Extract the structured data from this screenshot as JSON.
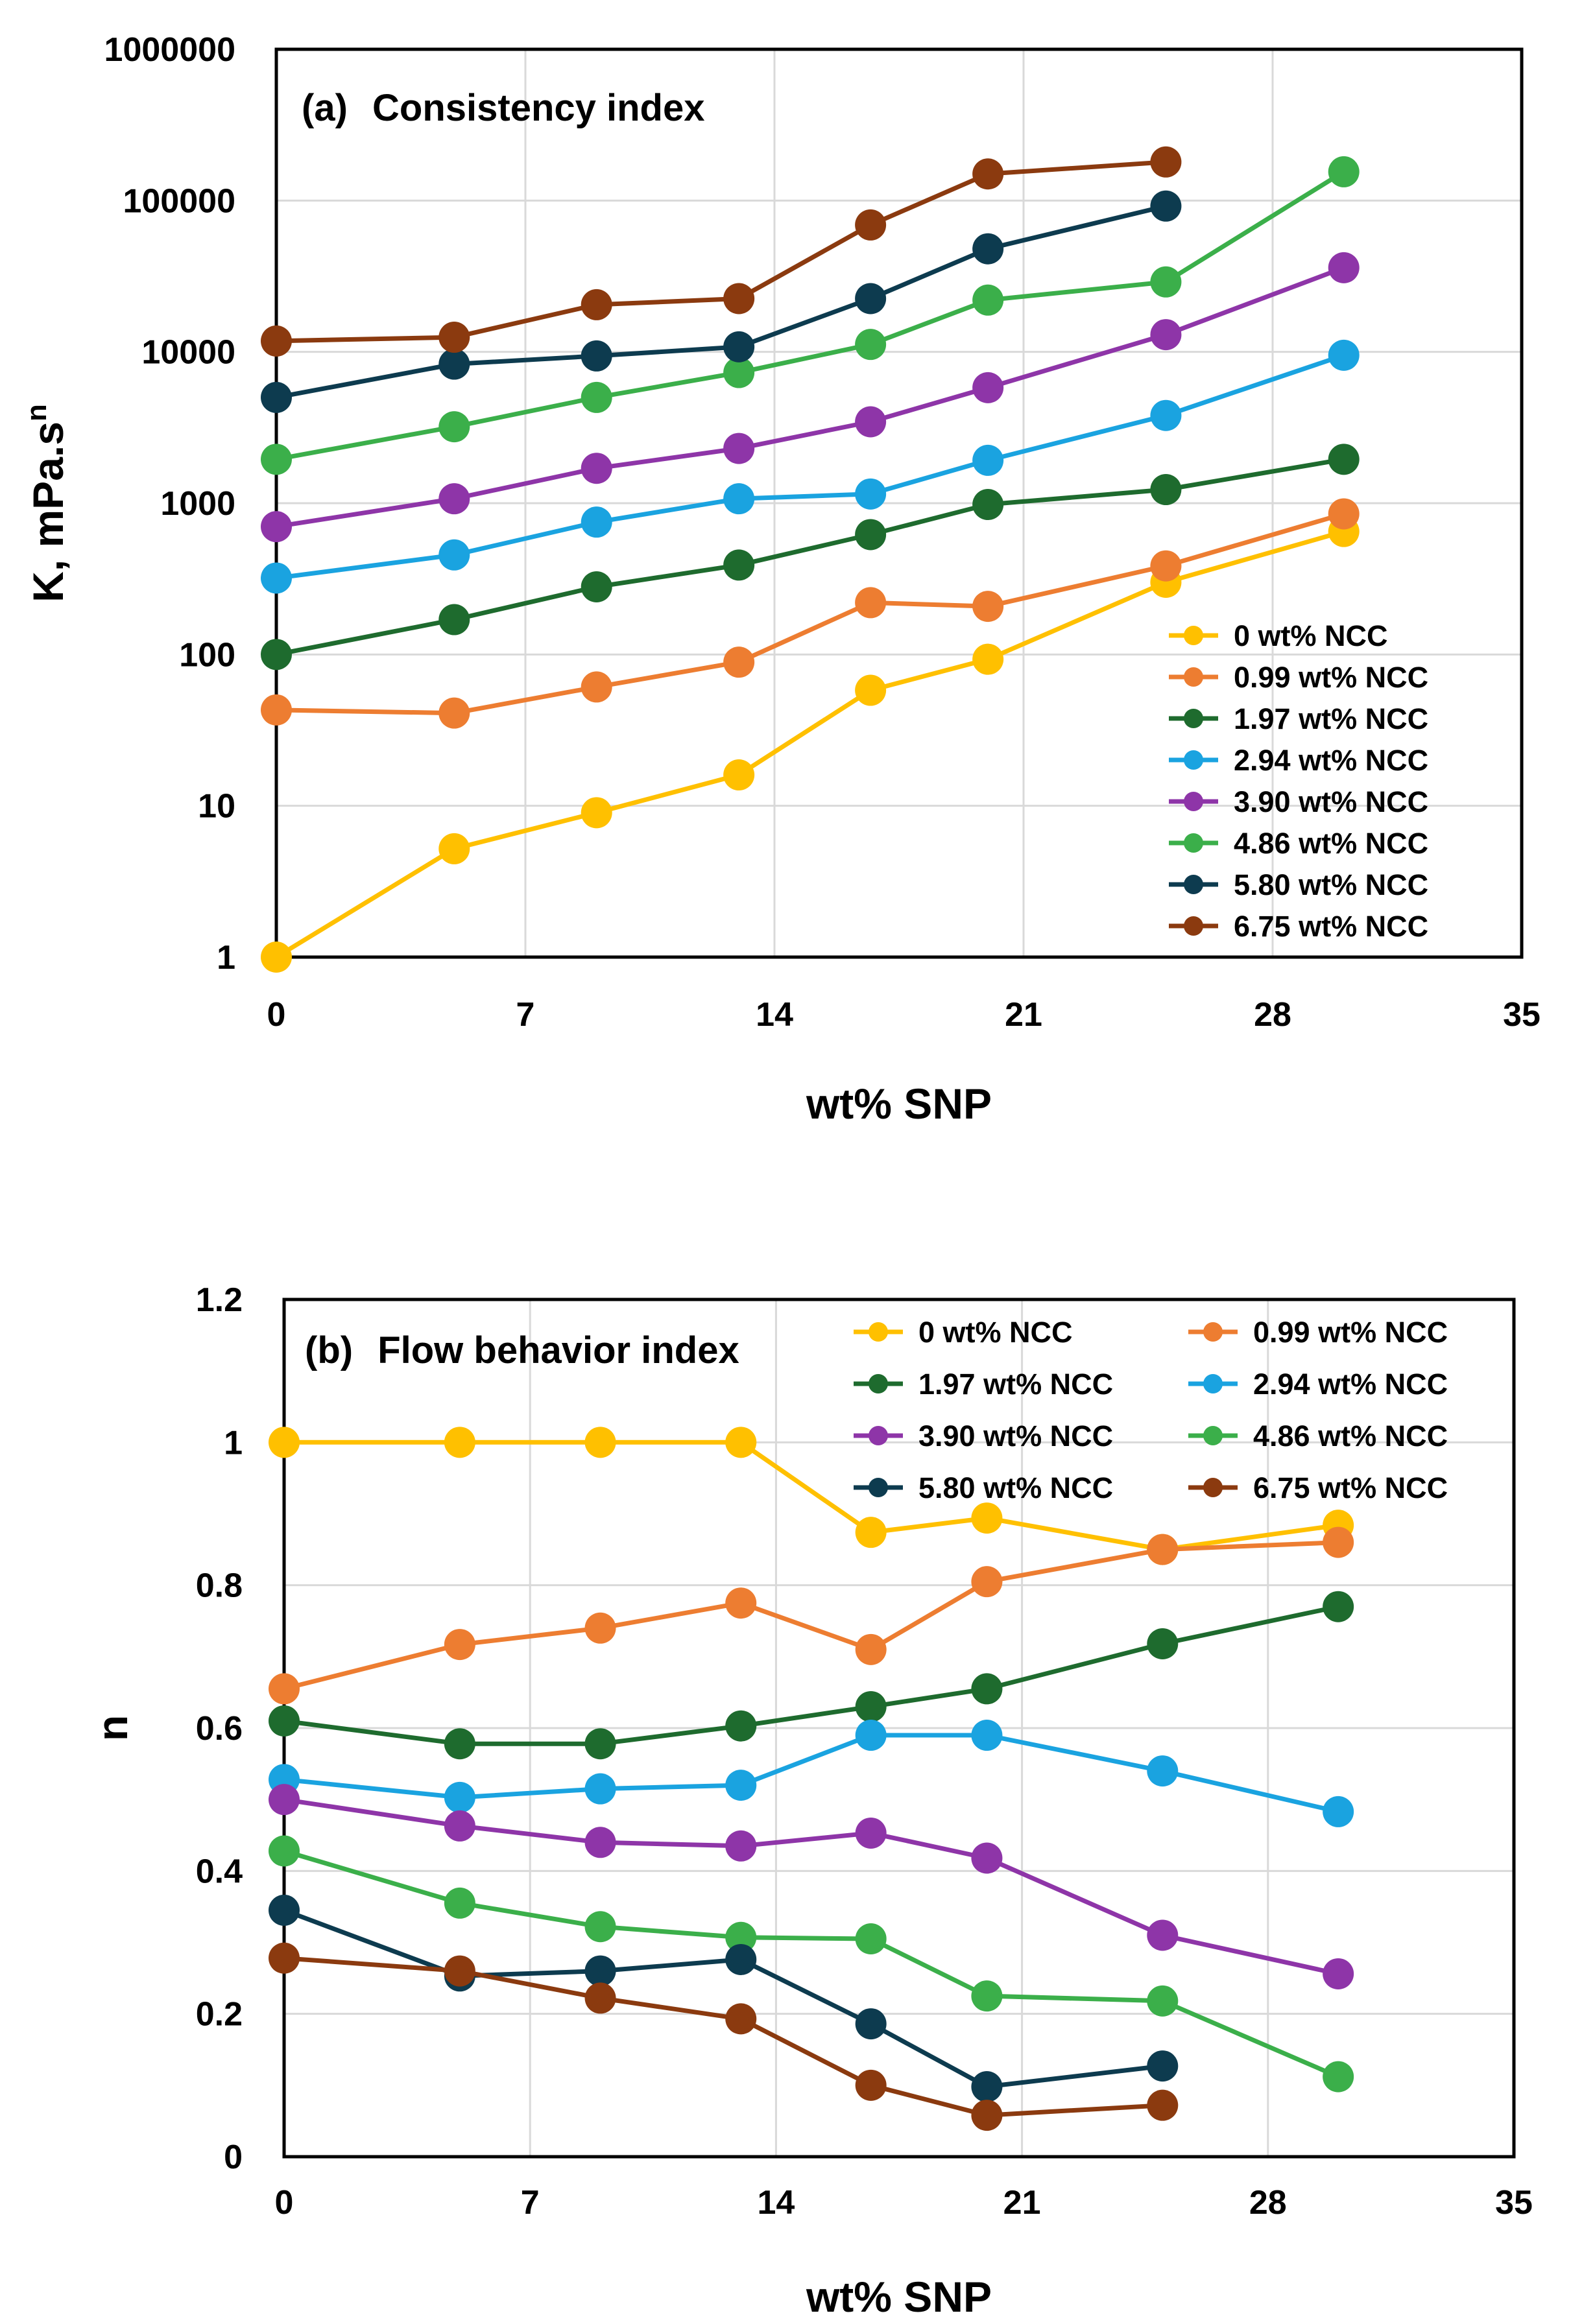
{
  "chart_data": [
    {
      "type": "line",
      "panel": "a",
      "title_tag": "(a)",
      "title": "Consistency index",
      "xlabel": "wt% SNP",
      "ylabel": "K, mPa.s",
      "ylabel_sup": "n",
      "yscale": "log",
      "xlim": [
        0,
        35
      ],
      "ylim": [
        1,
        1000000
      ],
      "xticks": [
        0,
        7,
        14,
        21,
        28,
        35
      ],
      "yticks": [
        1,
        10,
        100,
        1000,
        10000,
        100000,
        1000000
      ],
      "xtick_labels": [
        "0",
        "7",
        "14",
        "21",
        "28",
        "35"
      ],
      "ytick_labels": [
        "1",
        "10",
        "100",
        "1000",
        "10000",
        "100000",
        "1000000"
      ],
      "grid": true,
      "legend_position": "lower-right",
      "series": [
        {
          "name": "0 wt% NCC",
          "color": "#FFC000",
          "x": [
            0,
            5,
            9,
            13,
            16.7,
            20,
            25,
            30
          ],
          "y": [
            1,
            5.2,
            9,
            16,
            58,
            93,
            300,
            650
          ]
        },
        {
          "name": "0.99 wt% NCC",
          "color": "#ED7D31",
          "x": [
            0,
            5,
            9,
            13,
            16.7,
            20,
            25,
            30
          ],
          "y": [
            43,
            41,
            61,
            89,
            220,
            208,
            385,
            850
          ]
        },
        {
          "name": "1.97 wt% NCC",
          "color": "#1E6B2E",
          "x": [
            0,
            5,
            9,
            13,
            16.7,
            20,
            25,
            30
          ],
          "y": [
            100,
            170,
            280,
            390,
            620,
            980,
            1230,
            1950
          ]
        },
        {
          "name": "2.94 wt% NCC",
          "color": "#1AA3E0",
          "x": [
            0,
            5,
            9,
            13,
            16.7,
            20,
            25,
            30
          ],
          "y": [
            320,
            455,
            750,
            1070,
            1150,
            1920,
            3800,
            9500
          ]
        },
        {
          "name": "3.90 wt% NCC",
          "color": "#8E35A8",
          "x": [
            0,
            5,
            9,
            13,
            16.7,
            20,
            25,
            30
          ],
          "y": [
            700,
            1070,
            1700,
            2300,
            3450,
            5800,
            13000,
            36000
          ]
        },
        {
          "name": "4.86 wt% NCC",
          "color": "#3BAF4A",
          "x": [
            0,
            5,
            9,
            13,
            16.7,
            20,
            25,
            30
          ],
          "y": [
            1950,
            3200,
            5000,
            7300,
            11200,
            22000,
            29000,
            155000
          ]
        },
        {
          "name": "5.80 wt% NCC",
          "color": "#0D3B4F",
          "x": [
            0,
            5,
            9,
            13,
            16.7,
            20,
            25
          ],
          "y": [
            5000,
            8300,
            9400,
            10800,
            22500,
            48000,
            92000
          ]
        },
        {
          "name": "6.75 wt% NCC",
          "color": "#8B3A0F",
          "x": [
            0,
            5,
            9,
            13,
            16.7,
            20,
            25
          ],
          "y": [
            11800,
            12500,
            20500,
            22500,
            69000,
            150000,
            180000
          ]
        }
      ]
    },
    {
      "type": "line",
      "panel": "b",
      "title_tag": "(b)",
      "title": "Flow behavior index",
      "xlabel": "wt% SNP",
      "ylabel": "n",
      "yscale": "linear",
      "xlim": [
        0,
        35
      ],
      "ylim": [
        0,
        1.2
      ],
      "xticks": [
        0,
        7,
        14,
        21,
        28,
        35
      ],
      "yticks": [
        0,
        0.2,
        0.4,
        0.6,
        0.8,
        1,
        1.2
      ],
      "xtick_labels": [
        "0",
        "7",
        "14",
        "21",
        "28",
        "35"
      ],
      "ytick_labels": [
        "0",
        "0.2",
        "0.4",
        "0.6",
        "0.8",
        "1",
        "1.2"
      ],
      "grid": true,
      "legend_position": "top-right",
      "series": [
        {
          "name": "0 wt% NCC",
          "color": "#FFC000",
          "x": [
            0,
            5,
            9,
            13,
            16.7,
            20,
            25,
            30
          ],
          "y": [
            1,
            1,
            1,
            1,
            0.874,
            0.894,
            0.85,
            0.884
          ]
        },
        {
          "name": "0.99 wt% NCC",
          "color": "#ED7D31",
          "x": [
            0,
            5,
            9,
            13,
            16.7,
            20,
            25,
            30
          ],
          "y": [
            0.655,
            0.717,
            0.74,
            0.775,
            0.71,
            0.805,
            0.85,
            0.86
          ]
        },
        {
          "name": "1.97 wt% NCC",
          "color": "#1E6B2E",
          "x": [
            0,
            5,
            9,
            13,
            16.7,
            20,
            25,
            30
          ],
          "y": [
            0.61,
            0.578,
            0.578,
            0.603,
            0.63,
            0.655,
            0.718,
            0.77
          ]
        },
        {
          "name": "2.94 wt% NCC",
          "color": "#1AA3E0",
          "x": [
            0,
            5,
            9,
            13,
            16.7,
            20,
            25,
            30
          ],
          "y": [
            0.528,
            0.503,
            0.515,
            0.52,
            0.59,
            0.59,
            0.54,
            0.483
          ]
        },
        {
          "name": "3.90 wt% NCC",
          "color": "#8E35A8",
          "x": [
            0,
            5,
            9,
            13,
            16.7,
            20,
            25,
            30
          ],
          "y": [
            0.5,
            0.463,
            0.44,
            0.435,
            0.453,
            0.418,
            0.31,
            0.256
          ]
        },
        {
          "name": "4.86 wt% NCC",
          "color": "#3BAF4A",
          "x": [
            0,
            5,
            9,
            13,
            16.7,
            20,
            25,
            30
          ],
          "y": [
            0.428,
            0.355,
            0.322,
            0.307,
            0.305,
            0.225,
            0.218,
            0.112
          ]
        },
        {
          "name": "5.80 wt% NCC",
          "color": "#0D3B4F",
          "x": [
            0,
            5,
            9,
            13,
            16.7,
            20,
            25
          ],
          "y": [
            0.345,
            0.253,
            0.26,
            0.276,
            0.186,
            0.098,
            0.127
          ]
        },
        {
          "name": "6.75 wt% NCC",
          "color": "#8B3A0F",
          "x": [
            0,
            5,
            9,
            13,
            16.7,
            20,
            25
          ],
          "y": [
            0.278,
            0.26,
            0.222,
            0.193,
            0.1,
            0.058,
            0.072
          ]
        }
      ]
    }
  ]
}
